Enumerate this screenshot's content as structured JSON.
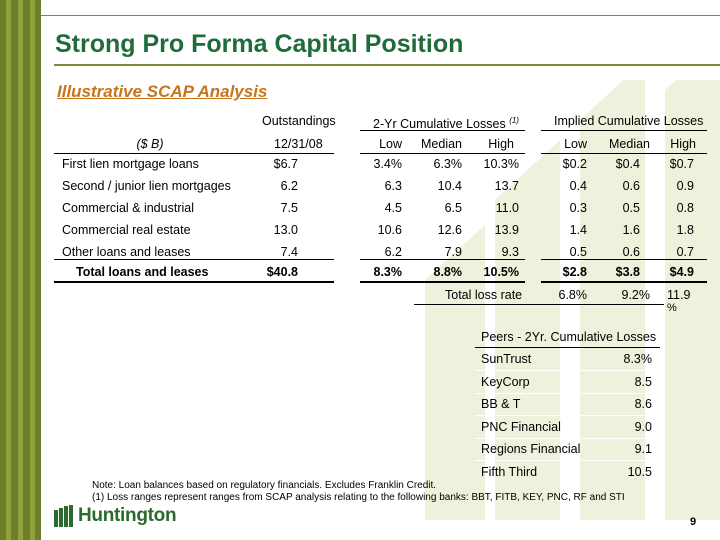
{
  "title": "Strong Pro Forma Capital Position",
  "subtitle": "Illustrative SCAP Analysis",
  "colors": {
    "title": "#1f6b3a",
    "subtitle": "#c8741b",
    "sidebar": "#6b7f2b",
    "logo": "#2b6a2e"
  },
  "table": {
    "group_headers": {
      "outstandings": "Outstandings",
      "losses": "2-Yr Cumulative Losses",
      "losses_note": "(1)",
      "implied": "Implied Cumulative Losses"
    },
    "sub_headers": {
      "unit": "($ B)",
      "date": "12/31/08",
      "low": "Low",
      "median": "Median",
      "high": "High",
      "low2": "Low",
      "median2": "Median",
      "high2": "High"
    },
    "rows": [
      {
        "label": "First lien mortgage loans",
        "out": "$6.7",
        "low": "3.4%",
        "med": "6.3%",
        "high": "10.3%",
        "ilow": "$0.2",
        "imed": "$0.4",
        "ihigh": "$0.7"
      },
      {
        "label": "Second / junior lien mortgages",
        "out": "6.2",
        "low": "6.3",
        "med": "10.4",
        "high": "13.7",
        "ilow": "0.4",
        "imed": "0.6",
        "ihigh": "0.9"
      },
      {
        "label": "Commercial & industrial",
        "out": "7.5",
        "low": "4.5",
        "med": "6.5",
        "high": "11.0",
        "ilow": "0.3",
        "imed": "0.5",
        "ihigh": "0.8"
      },
      {
        "label": "Commercial real estate",
        "out": "13.0",
        "low": "10.6",
        "med": "12.6",
        "high": "13.9",
        "ilow": "1.4",
        "imed": "1.6",
        "ihigh": "1.8"
      },
      {
        "label": "Other loans and leases",
        "out": "7.4",
        "low": "6.2",
        "med": "7.9",
        "high": "9.3",
        "ilow": "0.5",
        "imed": "0.6",
        "ihigh": "0.7"
      }
    ],
    "total": {
      "label": "Total loans and leases",
      "out": "$40.8",
      "low": "8.3%",
      "med": "8.8%",
      "high": "10.5%",
      "ilow": "$2.8",
      "imed": "$3.8",
      "ihigh": "$4.9"
    },
    "loss_rate": {
      "label": "Total loss rate",
      "low": "6.8%",
      "med": "9.2%",
      "high": "11.9",
      "high_wrap": "%"
    }
  },
  "peers": {
    "header": "Peers - 2Yr. Cumulative Losses",
    "rows": [
      {
        "name": "SunTrust",
        "value": "8.3%"
      },
      {
        "name": "KeyCorp",
        "value": "8.5"
      },
      {
        "name": "BB & T",
        "value": "8.6"
      },
      {
        "name": "PNC Financial",
        "value": "9.0"
      },
      {
        "name": "Regions Financial",
        "value": "9.1"
      },
      {
        "name": "Fifth Third",
        "value": "10.5"
      }
    ]
  },
  "notes": {
    "note": "Note: Loan balances based on regulatory financials.  Excludes Franklin Credit.",
    "footnote": "(1) Loss ranges represent ranges from SCAP analysis relating to the following banks: BBT, FITB, KEY, PNC, RF and STI"
  },
  "logo_text": "Huntington",
  "page_number": "9"
}
